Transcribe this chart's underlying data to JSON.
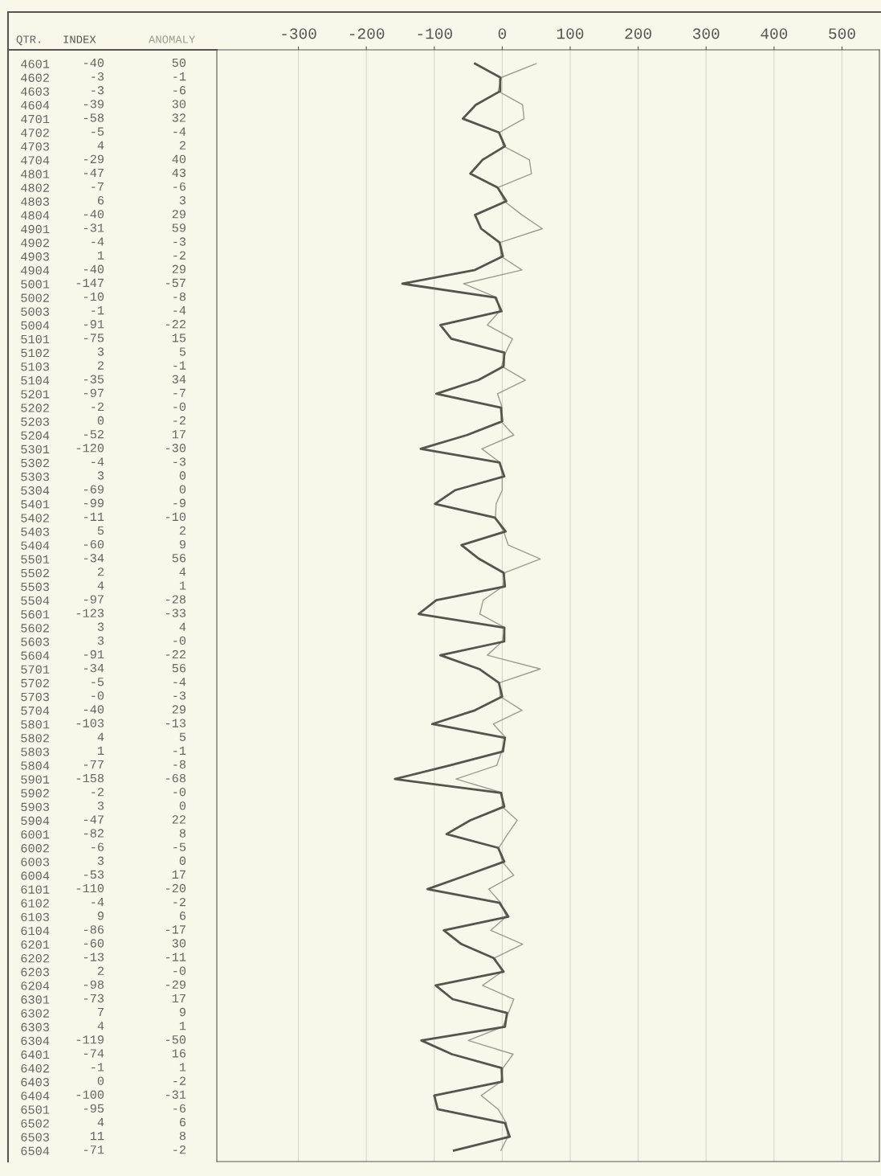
{
  "chart_data": {
    "type": "line",
    "orientation": "horizontal",
    "ylabel": "QTR.",
    "categories": [
      "4601",
      "4602",
      "4603",
      "4604",
      "4701",
      "4702",
      "4703",
      "4704",
      "4801",
      "4802",
      "4803",
      "4804",
      "4901",
      "4902",
      "4903",
      "4904",
      "5001",
      "5002",
      "5003",
      "5004",
      "5101",
      "5102",
      "5103",
      "5104",
      "5201",
      "5202",
      "5203",
      "5204",
      "5301",
      "5302",
      "5303",
      "5304",
      "5401",
      "5402",
      "5403",
      "5404",
      "5501",
      "5502",
      "5503",
      "5504",
      "5601",
      "5602",
      "5603",
      "5604",
      "5701",
      "5702",
      "5703",
      "5704",
      "5801",
      "5802",
      "5803",
      "5804",
      "5901",
      "5902",
      "5903",
      "5904",
      "6001",
      "6002",
      "6003",
      "6004",
      "6101",
      "6102",
      "6103",
      "6104",
      "6201",
      "6202",
      "6203",
      "6204",
      "6301",
      "6302",
      "6303",
      "6304",
      "6401",
      "6402",
      "6403",
      "6404",
      "6501",
      "6502",
      "6503",
      "6504"
    ],
    "series": [
      {
        "name": "INDEX",
        "color": "#55554d",
        "values": [
          -40,
          -3,
          -3,
          -39,
          -58,
          -5,
          4,
          -29,
          -47,
          -7,
          6,
          -40,
          -31,
          -4,
          1,
          -40,
          -147,
          -10,
          -1,
          -91,
          -75,
          3,
          2,
          -35,
          -97,
          -2,
          0,
          -52,
          -120,
          -4,
          3,
          -69,
          -99,
          -11,
          5,
          -60,
          -34,
          2,
          4,
          -97,
          -123,
          3,
          3,
          -91,
          -34,
          -5,
          0,
          -40,
          -103,
          4,
          1,
          -77,
          -158,
          -2,
          3,
          -47,
          -82,
          -6,
          3,
          -53,
          -110,
          -4,
          9,
          -86,
          -60,
          -13,
          2,
          -98,
          -73,
          7,
          4,
          -119,
          -74,
          -1,
          0,
          -100,
          -95,
          4,
          11,
          -71
        ],
        "value_labels": [
          "-40",
          "-3",
          "-3",
          "-39",
          "-58",
          "-5",
          "4",
          "-29",
          "-47",
          "-7",
          "6",
          "-40",
          "-31",
          "-4",
          "1",
          "-40",
          "-147",
          "-10",
          "-1",
          "-91",
          "-75",
          "3",
          "2",
          "-35",
          "-97",
          "-2",
          "0",
          "-52",
          "-120",
          "-4",
          "3",
          "-69",
          "-99",
          "-11",
          "5",
          "-60",
          "-34",
          "2",
          "4",
          "-97",
          "-123",
          "3",
          "3",
          "-91",
          "-34",
          "-5",
          "-0",
          "-40",
          "-103",
          "4",
          "1",
          "-77",
          "-158",
          "-2",
          "3",
          "-47",
          "-82",
          "-6",
          "3",
          "-53",
          "-110",
          "-4",
          "9",
          "-86",
          "-60",
          "-13",
          "2",
          "-98",
          "-73",
          "7",
          "4",
          "-119",
          "-74",
          "-1",
          "0",
          "-100",
          "-95",
          "4",
          "11",
          "-71"
        ]
      },
      {
        "name": "ANOMALY",
        "color": "#9c9c90",
        "values": [
          50,
          -1,
          -6,
          30,
          32,
          -4,
          2,
          40,
          43,
          -6,
          3,
          29,
          59,
          -3,
          -2,
          29,
          -57,
          -8,
          -4,
          -22,
          15,
          5,
          -1,
          34,
          -7,
          0,
          -2,
          17,
          -30,
          -3,
          0,
          0,
          -9,
          -10,
          2,
          9,
          56,
          4,
          1,
          -28,
          -33,
          4,
          0,
          -22,
          56,
          -4,
          -3,
          29,
          -13,
          5,
          -1,
          -8,
          -68,
          0,
          0,
          22,
          8,
          -5,
          0,
          17,
          -20,
          -2,
          6,
          -17,
          30,
          -11,
          0,
          -29,
          17,
          9,
          1,
          -50,
          16,
          1,
          -2,
          -31,
          -6,
          6,
          8,
          -2
        ],
        "value_labels": [
          "50",
          "-1",
          "-6",
          "30",
          "32",
          "-4",
          "2",
          "40",
          "43",
          "-6",
          "3",
          "29",
          "59",
          "-3",
          "-2",
          "29",
          "-57",
          "-8",
          "-4",
          "-22",
          "15",
          "5",
          "-1",
          "34",
          "-7",
          "-0",
          "-2",
          "17",
          "-30",
          "-3",
          "0",
          "0",
          "-9",
          "-10",
          "2",
          "9",
          "56",
          "4",
          "1",
          "-28",
          "-33",
          "4",
          "-0",
          "-22",
          "56",
          "-4",
          "-3",
          "29",
          "-13",
          "5",
          "-1",
          "-8",
          "-68",
          "-0",
          "0",
          "22",
          "8",
          "-5",
          "0",
          "17",
          "-20",
          "-2",
          "6",
          "-17",
          "30",
          "-11",
          "-0",
          "-29",
          "17",
          "9",
          "1",
          "-50",
          "16",
          "1",
          "-2",
          "-31",
          "-6",
          "6",
          "8",
          "-2"
        ]
      }
    ],
    "x2lim": [
      -420,
      555
    ],
    "x2ticks": [
      -300,
      -200,
      -100,
      0,
      100,
      200,
      300,
      400,
      500
    ],
    "grid": "x",
    "marker": "none",
    "line_style": "solid"
  }
}
